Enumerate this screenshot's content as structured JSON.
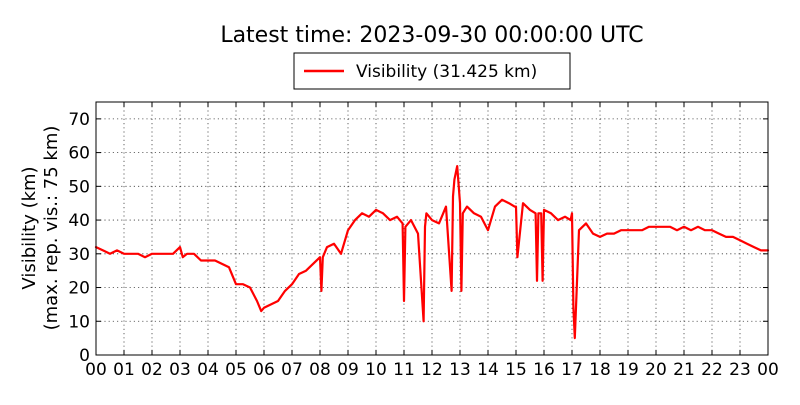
{
  "chart_data": {
    "type": "line",
    "title": "Latest time: 2023-09-30 00:00:00 UTC",
    "ylabel_line1": "Visibility (km)",
    "ylabel_line2": "(max. rep. vis.: 75 km)",
    "xlim": [
      0,
      24
    ],
    "ylim": [
      0,
      75
    ],
    "x_ticks": [
      0,
      1,
      2,
      3,
      4,
      5,
      6,
      7,
      8,
      9,
      10,
      11,
      12,
      13,
      14,
      15,
      16,
      17,
      18,
      19,
      20,
      21,
      22,
      23,
      24
    ],
    "x_tick_labels": [
      "00",
      "01",
      "02",
      "03",
      "04",
      "05",
      "06",
      "07",
      "08",
      "09",
      "10",
      "11",
      "12",
      "13",
      "14",
      "15",
      "16",
      "17",
      "18",
      "19",
      "20",
      "21",
      "22",
      "23",
      "00"
    ],
    "y_ticks": [
      0,
      10,
      20,
      30,
      40,
      50,
      60,
      70
    ],
    "y_tick_labels": [
      "0",
      "10",
      "20",
      "30",
      "40",
      "50",
      "60",
      "70"
    ],
    "grid": true,
    "legend_position": "top-center",
    "series": [
      {
        "name": "Visibility (31.425 km)",
        "color": "#ff0000",
        "x": [
          0,
          0.25,
          0.5,
          0.75,
          1,
          1.25,
          1.5,
          1.75,
          2,
          2.25,
          2.5,
          2.75,
          3,
          3.1,
          3.25,
          3.5,
          3.75,
          4,
          4.25,
          4.5,
          4.75,
          5,
          5.25,
          5.5,
          5.75,
          5.9,
          6,
          6.25,
          6.5,
          6.75,
          7,
          7.25,
          7.5,
          7.75,
          8,
          8.05,
          8.1,
          8.25,
          8.5,
          8.75,
          9,
          9.25,
          9.5,
          9.75,
          10,
          10.25,
          10.5,
          10.75,
          10.95,
          11,
          11.05,
          11.25,
          11.5,
          11.7,
          11.75,
          11.8,
          12,
          12.25,
          12.5,
          12.7,
          12.75,
          12.8,
          12.9,
          13,
          13.05,
          13.1,
          13.25,
          13.5,
          13.75,
          14,
          14.25,
          14.5,
          14.75,
          14.95,
          15,
          15.05,
          15.25,
          15.5,
          15.7,
          15.75,
          15.8,
          15.9,
          15.95,
          16,
          16.25,
          16.5,
          16.75,
          16.95,
          17,
          17.05,
          17.1,
          17.25,
          17.5,
          17.75,
          18,
          18.25,
          18.5,
          18.75,
          19,
          19.25,
          19.5,
          19.75,
          20,
          20.25,
          20.5,
          20.75,
          21,
          21.25,
          21.5,
          21.75,
          22,
          22.25,
          22.5,
          22.75,
          23,
          23.25,
          23.5,
          23.75,
          24
        ],
        "values": [
          32,
          31,
          30,
          31,
          30,
          30,
          30,
          29,
          30,
          30,
          30,
          30,
          32,
          29,
          30,
          30,
          28,
          28,
          28,
          27,
          26,
          21,
          21,
          20,
          16,
          13,
          14,
          15,
          16,
          19,
          21,
          24,
          25,
          27,
          29,
          19,
          29,
          32,
          33,
          30,
          37,
          40,
          42,
          41,
          43,
          42,
          40,
          41,
          39,
          16,
          38,
          40,
          36,
          10,
          38,
          42,
          40,
          39,
          44,
          19,
          47,
          52,
          56,
          45,
          19,
          42,
          44,
          42,
          41,
          37,
          44,
          46,
          45,
          44,
          44,
          29,
          45,
          43,
          42,
          22,
          42,
          42,
          22,
          43,
          42,
          40,
          41,
          40,
          42,
          14,
          5,
          37,
          39,
          36,
          35,
          36,
          36,
          37,
          37,
          37,
          37,
          38,
          38,
          38,
          38,
          37,
          38,
          37,
          38,
          37,
          37,
          36,
          35,
          35,
          34,
          33,
          32,
          31,
          31
        ]
      }
    ]
  }
}
